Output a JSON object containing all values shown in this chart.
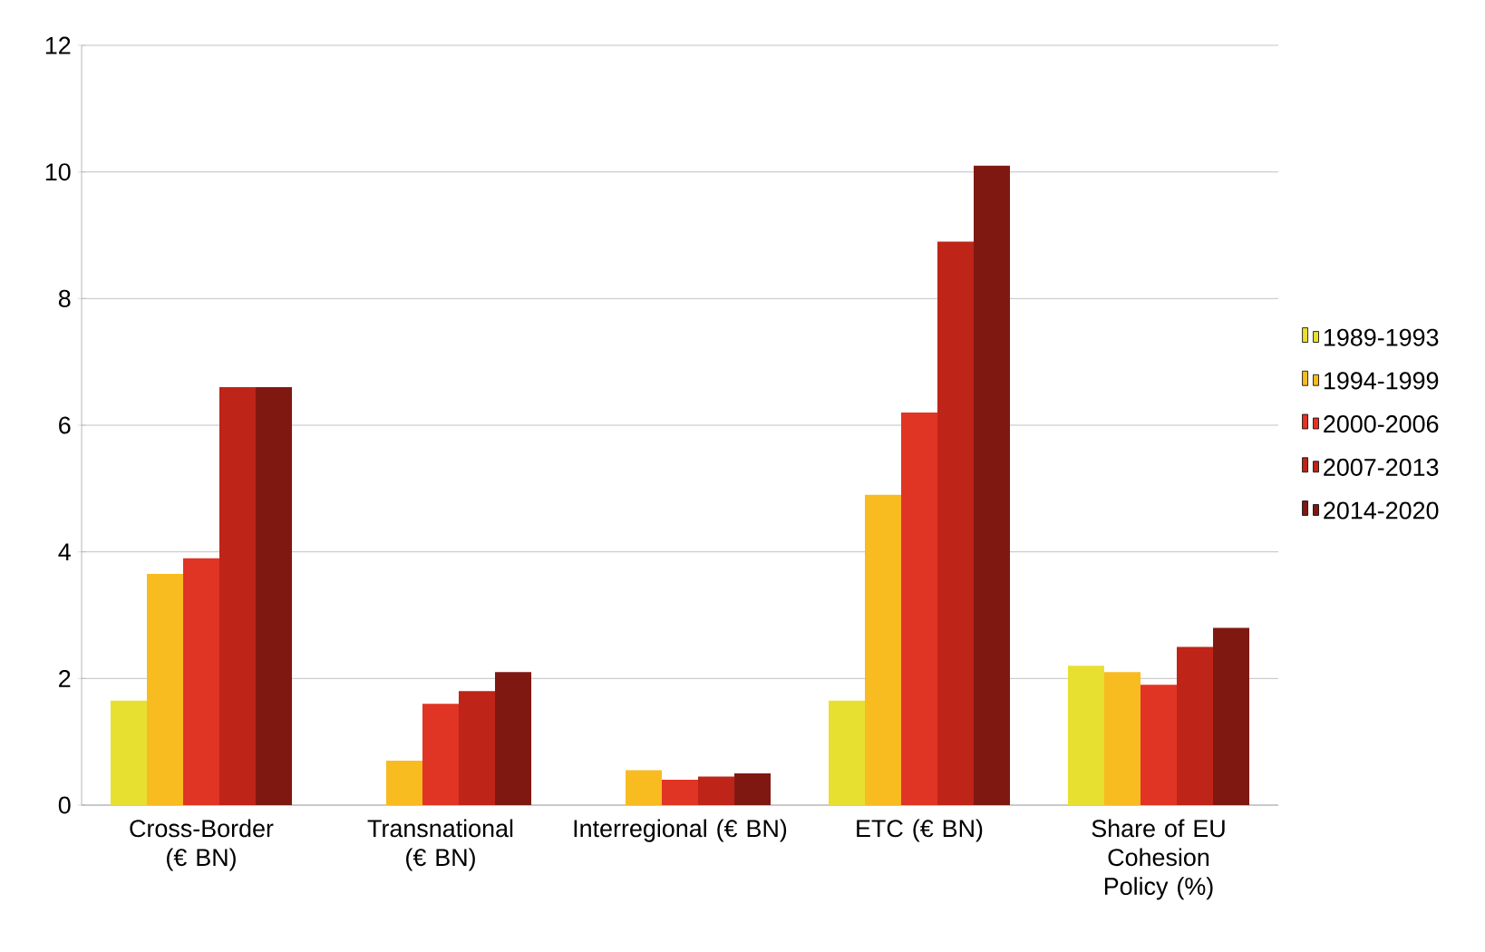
{
  "chart_data": {
    "type": "bar",
    "categories": [
      "Cross-Border (€ BN)",
      "Transnational (€ BN)",
      "Interregional (€ BN)",
      "ETC (€ BN)",
      "Share of EU Cohesion Policy (%)"
    ],
    "series": [
      {
        "name": "1989-1993",
        "color": "#e8e030",
        "values": [
          1.65,
          null,
          null,
          1.65,
          2.2
        ]
      },
      {
        "name": "1994-1999",
        "color": "#f8bb20",
        "values": [
          3.65,
          0.7,
          0.55,
          4.9,
          2.1
        ]
      },
      {
        "name": "2000-2006",
        "color": "#e03424",
        "values": [
          3.9,
          1.6,
          0.4,
          6.2,
          1.9
        ]
      },
      {
        "name": "2007-2013",
        "color": "#be2418",
        "values": [
          6.6,
          1.8,
          0.45,
          8.9,
          2.5
        ]
      },
      {
        "name": "2014-2020",
        "color": "#801812",
        "values": [
          6.6,
          2.1,
          0.5,
          10.1,
          2.8
        ]
      }
    ],
    "ylim": [
      0,
      12
    ],
    "yticks": [
      0,
      2,
      4,
      6,
      8,
      10,
      12
    ],
    "grid": "y",
    "legend": "right"
  }
}
